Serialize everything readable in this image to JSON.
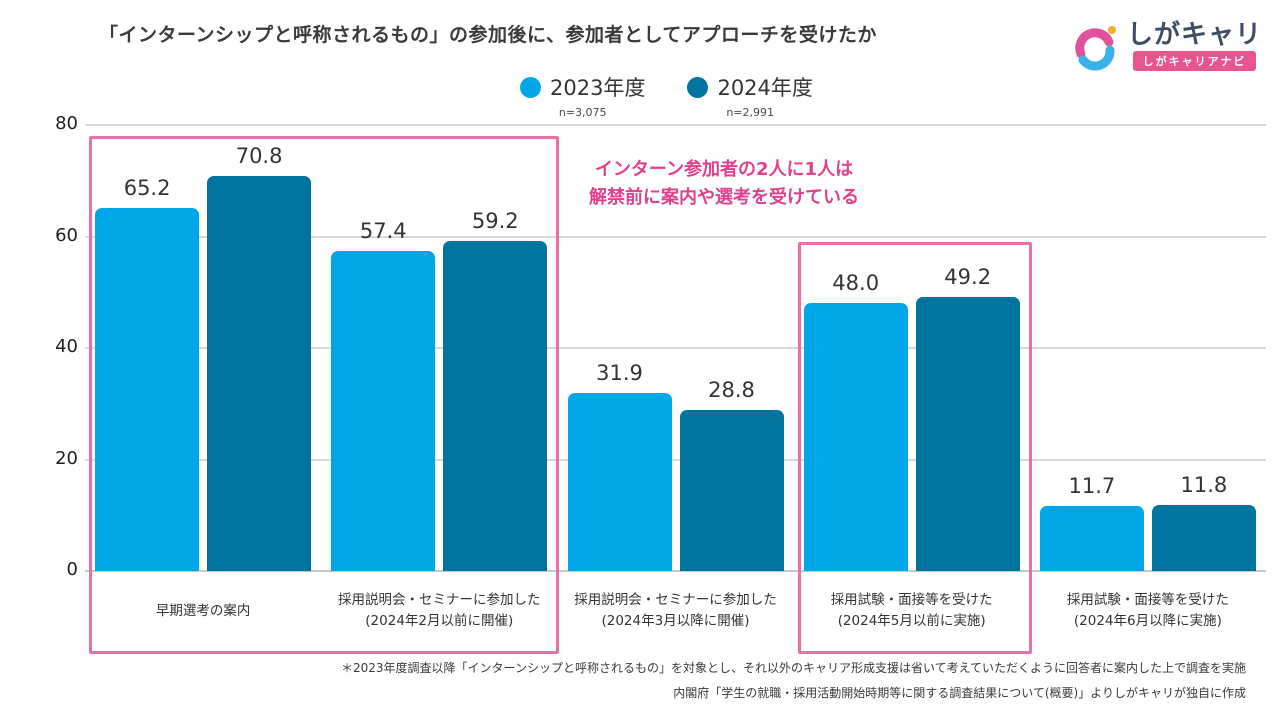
{
  "title": "「インターンシップと呼称されるもの」の参加後に、参加者としてアプローチを受けたか",
  "logo": {
    "name": "しがキャリ",
    "tagline": "しがキャリアナビ"
  },
  "colors": {
    "bar_2023": "#00a7e7",
    "bar_2024": "#00749f",
    "annotation_pink": "#e0418f",
    "highlight_box_pink": "#ea6fa8",
    "badge_pink": "#e7558f",
    "logo_pink": "#e0529b",
    "logo_blue": "#38b2e8",
    "logo_yellow": "#edb427"
  },
  "annotation": {
    "line1": "インターン参加者の2人に1人は",
    "line2": "解禁前に案内や選考を受けている"
  },
  "footnotes": [
    "＊2023年度調査以降「インターンシップと呼称されるもの」を対象とし、それ以外のキャリア形成支援は省いて考えていただくように回答者に案内した上で調査を実施",
    "内閣府「学生の就職・採用活動開始時期等に関する調査結果について(概要)」よりしがキャリが独自に作成"
  ],
  "chart_data": {
    "type": "bar",
    "categories": [
      "早期選考の案内",
      "採用説明会・セミナーに参加した\n(2024年2月以前に開催)",
      "採用説明会・セミナーに参加した\n(2024年3月以降に開催)",
      "採用試験・面接等を受けた\n(2024年5月以前に実施)",
      "採用試験・面接等を受けた\n(2024年6月以降に実施)"
    ],
    "series": [
      {
        "name": "2023年度",
        "n": "n=3,075",
        "color": "#00a7e7",
        "values": [
          65.2,
          57.4,
          31.9,
          48.0,
          11.7
        ]
      },
      {
        "name": "2024年度",
        "n": "n=2,991",
        "color": "#00749f",
        "values": [
          70.8,
          59.2,
          28.8,
          49.2,
          11.8
        ]
      }
    ],
    "title": "",
    "xlabel": "",
    "ylabel": "",
    "ylim": [
      0,
      80
    ],
    "yticks": [
      0,
      20,
      40,
      60,
      80
    ],
    "grid": true,
    "legend_position": "top-center",
    "value_labels": true,
    "value_label_decimals": 1,
    "highlight_boxes": [
      {
        "groups": [
          0,
          1
        ],
        "color": "#ea6fa8"
      },
      {
        "groups": [
          3
        ],
        "color": "#ea6fa8"
      }
    ]
  }
}
